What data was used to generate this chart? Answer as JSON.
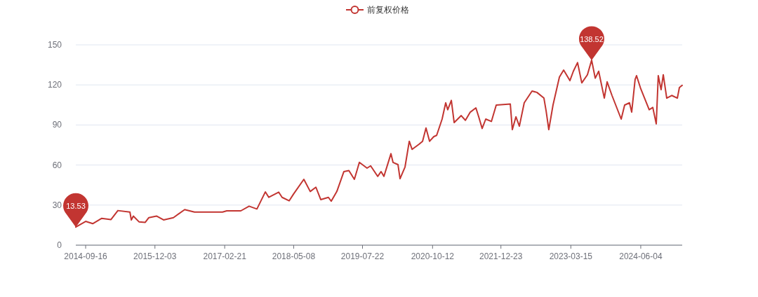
{
  "chart_data": {
    "type": "line",
    "x": [
      "2014-07-15",
      "2014-09-16",
      "2014-10-31",
      "2014-12-28",
      "2015-02-25",
      "2015-04-10",
      "2015-06-26",
      "2015-07-05",
      "2015-07-18",
      "2015-08-23",
      "2015-10-02",
      "2015-10-25",
      "2015-12-13",
      "2016-01-27",
      "2016-03-30",
      "2016-06-10",
      "2016-08-12",
      "2017-02-07",
      "2017-03-06",
      "2017-06-04",
      "2017-07-27",
      "2017-09-15",
      "2017-11-08",
      "2017-11-30",
      "2018-02-01",
      "2018-02-23",
      "2018-04-09",
      "2018-05-06",
      "2018-07-12",
      "2018-08-22",
      "2018-09-27",
      "2018-10-28",
      "2018-12-16",
      "2019-01-03",
      "2019-02-08",
      "2019-03-25",
      "2019-04-26",
      "2019-05-31",
      "2019-07-02",
      "2019-08-20",
      "2019-09-12",
      "2019-10-27",
      "2019-11-18",
      "2019-12-06",
      "2020-01-20",
      "2020-02-02",
      "2020-03-05",
      "2020-03-18",
      "2020-04-19",
      "2020-05-16",
      "2020-06-03",
      "2020-07-17",
      "2020-08-09",
      "2020-08-31",
      "2020-09-23",
      "2020-10-20",
      "2020-11-07",
      "2020-12-12",
      "2021-01-04",
      "2021-01-17",
      "2021-02-09",
      "2021-02-27",
      "2021-04-13",
      "2021-05-10",
      "2021-06-10",
      "2021-07-16",
      "2021-08-03",
      "2021-08-25",
      "2021-09-17",
      "2021-10-23",
      "2021-11-23",
      "2022-02-21",
      "2022-03-06",
      "2022-03-29",
      "2022-04-20",
      "2022-05-21",
      "2022-07-10",
      "2022-08-10",
      "2022-09-24",
      "2022-10-08",
      "2022-10-25",
      "2022-11-21",
      "2023-01-01",
      "2023-01-28",
      "2023-03-09",
      "2023-03-31",
      "2023-04-27",
      "2023-05-24",
      "2023-06-29",
      "2023-07-26",
      "2023-08-18",
      "2023-09-09",
      "2023-10-15",
      "2023-11-02",
      "2023-12-03",
      "2024-01-31",
      "2024-02-22",
      "2024-03-24",
      "2024-04-07",
      "2024-04-29",
      "2024-05-08",
      "2024-06-04",
      "2024-07-28",
      "2024-08-20",
      "2024-09-11",
      "2024-09-24",
      "2024-10-12",
      "2024-10-26",
      "2024-11-17",
      "2024-12-19",
      "2025-01-24",
      "2025-02-06",
      "2025-02-24"
    ],
    "series": [
      {
        "name": "前复权价格",
        "color": "#c23531",
        "values": [
          13.53,
          17.8,
          16.1,
          20.1,
          19.2,
          25.9,
          24.8,
          18.9,
          21.8,
          17.5,
          17.1,
          20.6,
          21.8,
          18.9,
          20.6,
          26.6,
          24.8,
          24.8,
          25.7,
          25.7,
          29.2,
          27.1,
          39.9,
          35.8,
          39.7,
          35.8,
          33.2,
          38.1,
          49.3,
          40.2,
          43.4,
          34.1,
          35.8,
          32.9,
          40.2,
          55.1,
          55.9,
          49.3,
          62.0,
          57.7,
          59.4,
          51.5,
          55.1,
          51.5,
          68.5,
          62.0,
          60.3,
          49.8,
          58.6,
          77.8,
          71.7,
          75.5,
          77.8,
          87.7,
          77.8,
          81.3,
          82.2,
          94.4,
          106.6,
          101.4,
          108.4,
          91.8,
          97.0,
          93.5,
          99.6,
          102.8,
          96.1,
          87.4,
          94.4,
          92.6,
          104.9,
          105.7,
          86.5,
          96.1,
          89.1,
          106.6,
          115.4,
          114.4,
          110.1,
          100.5,
          86.5,
          104.9,
          125.9,
          131.1,
          123.2,
          130.2,
          136.7,
          121.5,
          127.6,
          138.52,
          125.0,
          130.2,
          110.1,
          122.3,
          112.1,
          94.4,
          104.9,
          106.6,
          99.6,
          124.1,
          126.9,
          117.1,
          101.4,
          103.1,
          90.8,
          126.9,
          116.4,
          127.6,
          110.1,
          112.1,
          110.1,
          118.0,
          119.7
        ]
      }
    ],
    "xlim": [
      "2014-07-15",
      "2025-02-24"
    ],
    "xticks": [
      "2014-09-16",
      "2015-12-03",
      "2017-02-21",
      "2018-05-08",
      "2019-07-22",
      "2020-10-12",
      "2021-12-23",
      "2023-03-15",
      "2024-06-04"
    ],
    "ylim": [
      0,
      150
    ],
    "yticks": [
      0,
      30,
      60,
      90,
      120,
      150
    ],
    "grid": "y",
    "legend": "top",
    "annotations": [
      {
        "text": "138.52",
        "x": "2023-07-26",
        "y": 138.52
      },
      {
        "text": "13.53",
        "x": "2014-07-15",
        "y": 13.53
      }
    ]
  }
}
